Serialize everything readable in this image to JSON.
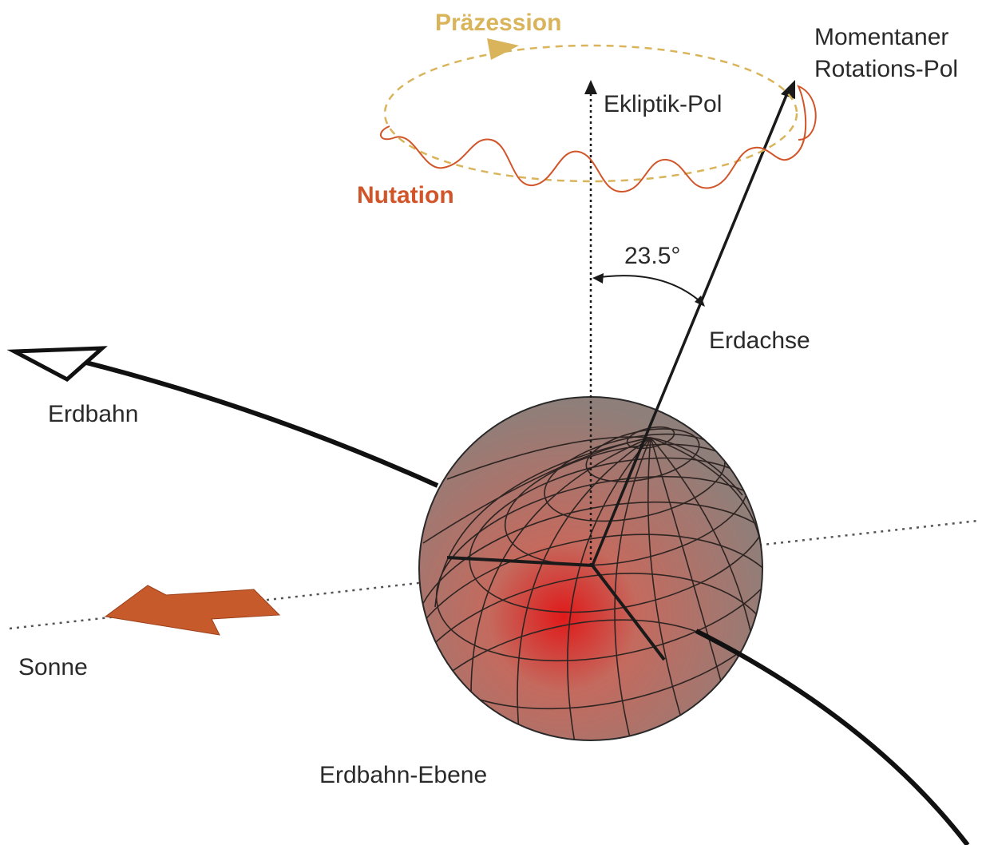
{
  "labels": {
    "praezession": "Präzession",
    "nutation": "Nutation",
    "ekliptik_pol": "Ekliptik-Pol",
    "rotations_pol_line1": "Momentaner",
    "rotations_pol_line2": "Rotations-Pol",
    "winkel": "23.5°",
    "erdachse": "Erdachse",
    "erdbahn": "Erdbahn",
    "sonne": "Sonne",
    "erdbahn_ebene": "Erdbahn-Ebene"
  },
  "colors": {
    "praezession": "#d9b45a",
    "nutation": "#d2552a",
    "sun_arrow": "#c75a2a",
    "globe_center": "#e01a1a",
    "globe_edge": "#8f7f7a",
    "ink": "#1a1a1a"
  }
}
